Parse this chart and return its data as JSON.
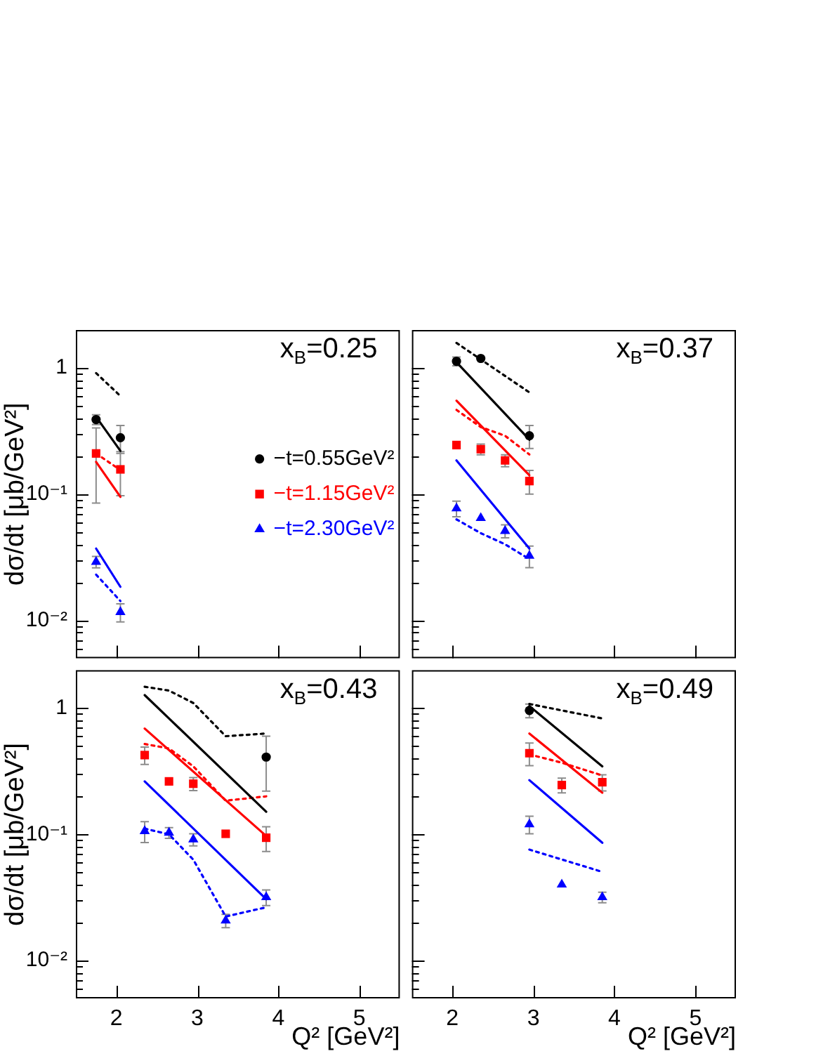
{
  "chart_data": [
    {
      "type": "scatter",
      "annotations": [
        "x$_{B}$=0.25"
      ],
      "ylabel": "dσ/dt [μb/GeV²]",
      "xlim": [
        1.5,
        5.5
      ],
      "xticks": [
        2,
        3,
        4,
        5
      ],
      "ylim": [
        0.005,
        2
      ],
      "log": true,
      "tick_labels": "y",
      "legend": "right",
      "yticks": [
        {
          "value": 0.006,
          "label": null
        },
        {
          "value": 0.007,
          "label": null
        },
        {
          "value": 0.008,
          "label": null
        },
        {
          "value": 0.009,
          "label": null
        },
        {
          "value": 0.01,
          "label": "10⁻²"
        },
        {
          "value": 0.02,
          "label": null
        },
        {
          "value": 0.03,
          "label": null
        },
        {
          "value": 0.04,
          "label": null
        },
        {
          "value": 0.05,
          "label": null
        },
        {
          "value": 0.06,
          "label": null
        },
        {
          "value": 0.07,
          "label": null
        },
        {
          "value": 0.08,
          "label": null
        },
        {
          "value": 0.09,
          "label": null
        },
        {
          "value": 0.1,
          "label": "10⁻¹"
        },
        {
          "value": 0.2,
          "label": null
        },
        {
          "value": 0.3,
          "label": null
        },
        {
          "value": 0.4,
          "label": null
        },
        {
          "value": 0.5,
          "label": null
        },
        {
          "value": 0.6,
          "label": null
        },
        {
          "value": 0.7,
          "label": null
        },
        {
          "value": 0.8,
          "label": null
        },
        {
          "value": 0.9,
          "label": null
        },
        1
      ],
      "series": [
        {
          "name": "−t=0.55GeV²",
          "type": "scatter",
          "marker": "circle",
          "color": "#000000",
          "x": [
            1.75,
            2.05
          ],
          "values": [
            0.39,
            0.28
          ],
          "errors": [
            0.035,
            0.07
          ]
        },
        {
          "name": "−t=1.15GeV²",
          "type": "scatter",
          "marker": "square",
          "color": "#ff0000",
          "x": [
            1.75,
            2.05
          ],
          "values": [
            0.21,
            0.157
          ],
          "errors": [
            0.125,
            0.06
          ]
        },
        {
          "name": "−t=2.30GeV²",
          "type": "scatter",
          "marker": "triangle",
          "color": "#0000ff",
          "x": [
            1.75,
            2.05
          ],
          "values": [
            0.029,
            0.0116
          ],
          "errors": [
            0.003,
            0.0019
          ]
        },
        {
          "type": "line",
          "line_style": "solid",
          "color": "#000000",
          "x": [
            1.75,
            2.05
          ],
          "values": [
            0.41,
            0.22
          ]
        },
        {
          "type": "line",
          "line_style": "dotted",
          "color": "#000000",
          "x": [
            1.75,
            2.05
          ],
          "values": [
            0.91,
            0.6
          ]
        },
        {
          "type": "line",
          "line_style": "solid",
          "color": "#ff0000",
          "x": [
            1.75,
            2.05
          ],
          "values": [
            0.18,
            0.095
          ]
        },
        {
          "type": "line",
          "line_style": "dotted",
          "color": "#ff0000",
          "x": [
            1.75,
            2.05
          ],
          "values": [
            0.21,
            0.155
          ]
        },
        {
          "type": "line",
          "line_style": "solid",
          "color": "#0000ff",
          "x": [
            1.75,
            2.05
          ],
          "values": [
            0.037,
            0.0184
          ]
        },
        {
          "type": "line",
          "line_style": "dotted",
          "color": "#0000ff",
          "x": [
            1.75,
            2.05
          ],
          "values": [
            0.023,
            0.0142
          ]
        }
      ]
    },
    {
      "type": "scatter",
      "annotations": [
        "x$_{B}$=0.37"
      ],
      "xlim": [
        1.5,
        5.5
      ],
      "xticks": [
        2,
        3,
        4,
        5
      ],
      "ylim": [
        0.005,
        2
      ],
      "log": true,
      "tick_labels": false,
      "yticks": [
        {
          "value": 0.006,
          "label": null
        },
        {
          "value": 0.007,
          "label": null
        },
        {
          "value": 0.008,
          "label": null
        },
        {
          "value": 0.009,
          "label": null
        },
        {
          "value": 0.01,
          "label": null
        },
        {
          "value": 0.02,
          "label": null
        },
        {
          "value": 0.03,
          "label": null
        },
        {
          "value": 0.04,
          "label": null
        },
        {
          "value": 0.05,
          "label": null
        },
        {
          "value": 0.06,
          "label": null
        },
        {
          "value": 0.07,
          "label": null
        },
        {
          "value": 0.08,
          "label": null
        },
        {
          "value": 0.09,
          "label": null
        },
        {
          "value": 0.1,
          "label": null
        },
        {
          "value": 0.2,
          "label": null
        },
        {
          "value": 0.3,
          "label": null
        },
        {
          "value": 0.4,
          "label": null
        },
        {
          "value": 0.5,
          "label": null
        },
        {
          "value": 0.6,
          "label": null
        },
        {
          "value": 0.7,
          "label": null
        },
        {
          "value": 0.8,
          "label": null
        },
        {
          "value": 0.9,
          "label": null
        },
        {
          "value": 1,
          "label": null
        }
      ],
      "series": [
        {
          "type": "scatter",
          "marker": "circle",
          "color": "#000000",
          "x": [
            2.05,
            2.35,
            2.95
          ],
          "values": [
            1.13,
            1.19,
            0.29
          ],
          "errors": [
            0.09,
            null,
            0.06
          ]
        },
        {
          "type": "scatter",
          "marker": "square",
          "color": "#ff0000",
          "x": [
            2.05,
            2.35,
            2.65,
            2.95
          ],
          "values": [
            0.245,
            0.227,
            0.185,
            0.127
          ],
          "errors": [
            null,
            0.022,
            0.02,
            0.027
          ]
        },
        {
          "type": "scatter",
          "marker": "triangle",
          "color": "#0000ff",
          "x": [
            2.05,
            2.35,
            2.65,
            2.95
          ],
          "values": [
            0.077,
            0.0645,
            0.051,
            0.0324
          ],
          "errors": [
            0.011,
            null,
            0.006,
            0.0063
          ]
        },
        {
          "type": "line",
          "line_style": "solid",
          "color": "#000000",
          "x": [
            2.05,
            2.95
          ],
          "values": [
            1.11,
            0.27
          ]
        },
        {
          "type": "line",
          "line_style": "dotted",
          "color": "#000000",
          "x": [
            2.05,
            2.95
          ],
          "values": [
            1.58,
            0.64
          ]
        },
        {
          "type": "line",
          "line_style": "solid",
          "color": "#ff0000",
          "x": [
            2.05,
            2.95
          ],
          "values": [
            0.55,
            0.141
          ]
        },
        {
          "type": "line",
          "line_style": "dotted",
          "color": "#ff0000",
          "x": [
            2.05,
            2.35,
            2.65,
            2.95
          ],
          "values": [
            0.465,
            0.34,
            0.29,
            0.206
          ]
        },
        {
          "type": "line",
          "line_style": "solid",
          "color": "#0000ff",
          "x": [
            2.05,
            2.95
          ],
          "values": [
            0.185,
            0.037
          ]
        },
        {
          "type": "line",
          "line_style": "dotted",
          "color": "#0000ff",
          "x": [
            2.05,
            2.35,
            2.65,
            2.95
          ],
          "values": [
            0.063,
            0.049,
            0.04,
            0.0305
          ]
        }
      ]
    },
    {
      "type": "scatter",
      "annotations": [
        "x$_{B}$=0.43"
      ],
      "ylabel": "dσ/dt [μb/GeV²]",
      "xlabel": "Q² [GeV²]",
      "xlim": [
        1.5,
        5.5
      ],
      "xticks": [
        2,
        3,
        4,
        5
      ],
      "ylim": [
        0.005,
        2
      ],
      "log": true,
      "yticks": [
        {
          "value": 0.006,
          "label": null
        },
        {
          "value": 0.007,
          "label": null
        },
        {
          "value": 0.008,
          "label": null
        },
        {
          "value": 0.009,
          "label": null
        },
        {
          "value": 0.01,
          "label": "10⁻²"
        },
        {
          "value": 0.02,
          "label": null
        },
        {
          "value": 0.03,
          "label": null
        },
        {
          "value": 0.04,
          "label": null
        },
        {
          "value": 0.05,
          "label": null
        },
        {
          "value": 0.06,
          "label": null
        },
        {
          "value": 0.07,
          "label": null
        },
        {
          "value": 0.08,
          "label": null
        },
        {
          "value": 0.09,
          "label": null
        },
        {
          "value": 0.1,
          "label": "10⁻¹"
        },
        {
          "value": 0.2,
          "label": null
        },
        {
          "value": 0.3,
          "label": null
        },
        {
          "value": 0.4,
          "label": null
        },
        {
          "value": 0.5,
          "label": null
        },
        {
          "value": 0.6,
          "label": null
        },
        {
          "value": 0.7,
          "label": null
        },
        {
          "value": 0.8,
          "label": null
        },
        {
          "value": 0.9,
          "label": null
        },
        1
      ],
      "series": [
        {
          "type": "scatter",
          "marker": "circle",
          "color": "#000000",
          "x": [
            3.85
          ],
          "values": [
            0.41
          ],
          "errors": [
            0.19
          ]
        },
        {
          "type": "scatter",
          "marker": "square",
          "color": "#ff0000",
          "x": [
            2.35,
            2.65,
            2.95,
            3.35,
            3.85
          ],
          "values": [
            0.425,
            0.263,
            0.252,
            0.101,
            0.094
          ],
          "errors": [
            0.067,
            null,
            0.03,
            null,
            0.021
          ]
        },
        {
          "type": "scatter",
          "marker": "triangle",
          "color": "#0000ff",
          "x": [
            2.35,
            2.65,
            2.95,
            3.35,
            3.85
          ],
          "values": [
            0.106,
            0.103,
            0.091,
            0.0207,
            0.0317
          ],
          "errors": [
            0.02,
            0.01,
            0.01,
            0.0025,
            0.0045
          ]
        },
        {
          "type": "line",
          "line_style": "solid",
          "color": "#000000",
          "x": [
            2.35,
            3.85
          ],
          "values": [
            1.27,
            0.151
          ]
        },
        {
          "type": "line",
          "line_style": "dotted",
          "color": "#000000",
          "x": [
            2.35,
            2.65,
            2.95,
            3.35,
            3.85
          ],
          "values": [
            1.48,
            1.38,
            1.1,
            0.6,
            0.63
          ]
        },
        {
          "type": "line",
          "line_style": "solid",
          "color": "#ff0000",
          "x": [
            2.35,
            3.85
          ],
          "values": [
            0.69,
            0.097
          ]
        },
        {
          "type": "line",
          "line_style": "dotted",
          "color": "#ff0000",
          "x": [
            2.35,
            2.65,
            2.95,
            3.35,
            3.85
          ],
          "values": [
            0.52,
            0.48,
            0.346,
            0.185,
            0.2
          ]
        },
        {
          "type": "line",
          "line_style": "solid",
          "color": "#0000ff",
          "x": [
            2.35,
            3.85
          ],
          "values": [
            0.263,
            0.0306
          ]
        },
        {
          "type": "line",
          "line_style": "dotted",
          "color": "#0000ff",
          "x": [
            2.35,
            2.65,
            2.95,
            3.35,
            3.85
          ],
          "values": [
            0.111,
            0.1,
            0.063,
            0.0223,
            0.0264
          ]
        }
      ]
    },
    {
      "type": "scatter",
      "annotations": [
        "x$_{B}$=0.49"
      ],
      "xlabel": "Q² [GeV²]",
      "xlim": [
        1.5,
        5.5
      ],
      "xticks": [
        2,
        3,
        4,
        5
      ],
      "ylim": [
        0.005,
        2
      ],
      "log": true,
      "tick_labels": "x",
      "yticks": [
        {
          "value": 0.006,
          "label": null
        },
        {
          "value": 0.007,
          "label": null
        },
        {
          "value": 0.008,
          "label": null
        },
        {
          "value": 0.009,
          "label": null
        },
        {
          "value": 0.01,
          "label": null
        },
        {
          "value": 0.02,
          "label": null
        },
        {
          "value": 0.03,
          "label": null
        },
        {
          "value": 0.04,
          "label": null
        },
        {
          "value": 0.05,
          "label": null
        },
        {
          "value": 0.06,
          "label": null
        },
        {
          "value": 0.07,
          "label": null
        },
        {
          "value": 0.08,
          "label": null
        },
        {
          "value": 0.09,
          "label": null
        },
        {
          "value": 0.1,
          "label": null
        },
        {
          "value": 0.2,
          "label": null
        },
        {
          "value": 0.3,
          "label": null
        },
        {
          "value": 0.4,
          "label": null
        },
        {
          "value": 0.5,
          "label": null
        },
        {
          "value": 0.6,
          "label": null
        },
        {
          "value": 0.7,
          "label": null
        },
        {
          "value": 0.8,
          "label": null
        },
        {
          "value": 0.9,
          "label": null
        },
        {
          "value": 1,
          "label": null
        }
      ],
      "series": [
        {
          "type": "scatter",
          "marker": "circle",
          "color": "#000000",
          "x": [
            2.95
          ],
          "values": [
            0.96
          ],
          "errors": [
            0.12
          ]
        },
        {
          "type": "scatter",
          "marker": "square",
          "color": "#ff0000",
          "x": [
            2.95,
            3.35,
            3.85
          ],
          "values": [
            0.44,
            0.246,
            0.259
          ],
          "errors": [
            0.09,
            0.033,
            0.038
          ]
        },
        {
          "type": "scatter",
          "marker": "triangle",
          "color": "#0000ff",
          "x": [
            2.95,
            3.35,
            3.85
          ],
          "values": [
            0.12,
            0.04,
            0.0317
          ],
          "errors": [
            0.019,
            null,
            0.003
          ]
        },
        {
          "type": "line",
          "line_style": "solid",
          "color": "#000000",
          "x": [
            2.95,
            3.85
          ],
          "values": [
            1.04,
            0.346
          ]
        },
        {
          "type": "line",
          "line_style": "dotted",
          "color": "#000000",
          "x": [
            2.95,
            3.85
          ],
          "values": [
            1.08,
            0.83
          ]
        },
        {
          "type": "line",
          "line_style": "solid",
          "color": "#ff0000",
          "x": [
            2.95,
            3.85
          ],
          "values": [
            0.63,
            0.214
          ]
        },
        {
          "type": "line",
          "line_style": "dotted",
          "color": "#ff0000",
          "x": [
            2.95,
            3.35,
            3.85
          ],
          "values": [
            0.43,
            0.37,
            0.293
          ]
        },
        {
          "type": "line",
          "line_style": "solid",
          "color": "#0000ff",
          "x": [
            2.95,
            3.85
          ],
          "values": [
            0.269,
            0.0857
          ]
        },
        {
          "type": "line",
          "line_style": "dotted",
          "color": "#0000ff",
          "x": [
            2.95,
            3.85
          ],
          "values": [
            0.0757,
            0.0504
          ]
        }
      ]
    }
  ]
}
